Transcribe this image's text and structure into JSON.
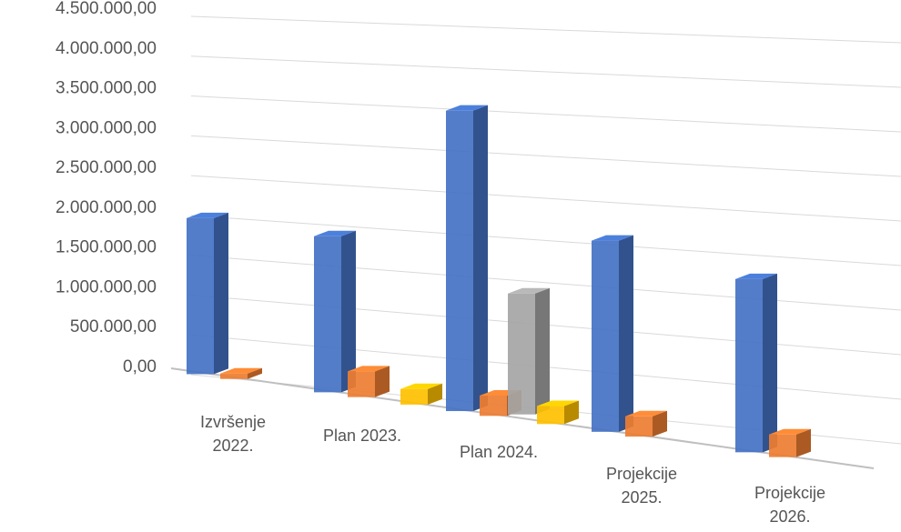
{
  "chart_data": {
    "type": "bar",
    "three_d": true,
    "categories": [
      [
        "Izvršenje",
        "2022."
      ],
      [
        "Plan 2023."
      ],
      [
        "Plan 2024."
      ],
      [
        "Projekcije",
        "2025."
      ],
      [
        "Projekcije",
        "2026."
      ]
    ],
    "series": [
      {
        "color": "#4472C4",
        "values": [
          2000000,
          2000000,
          3850000,
          2450000,
          2220000
        ]
      },
      {
        "color": "#ED7D31",
        "values": [
          70000,
          330000,
          260000,
          260000,
          290000
        ]
      },
      {
        "color": "#A5A5A5",
        "values": [
          0,
          0,
          1550000,
          0,
          0
        ]
      },
      {
        "color": "#FFC000",
        "values": [
          0,
          200000,
          230000,
          0,
          0
        ]
      }
    ],
    "y_ticks": [
      "0,00",
      "500.000,00",
      "1.000.000,00",
      "1.500.000,00",
      "2.000.000,00",
      "2.500.000,00",
      "3.000.000,00",
      "3.500.000,00",
      "4.000.000,00",
      "4.500.000,00"
    ],
    "ylim": [
      0,
      4500000
    ],
    "grid": true,
    "legend": "none",
    "title": "",
    "xlabel": "",
    "ylabel": ""
  }
}
